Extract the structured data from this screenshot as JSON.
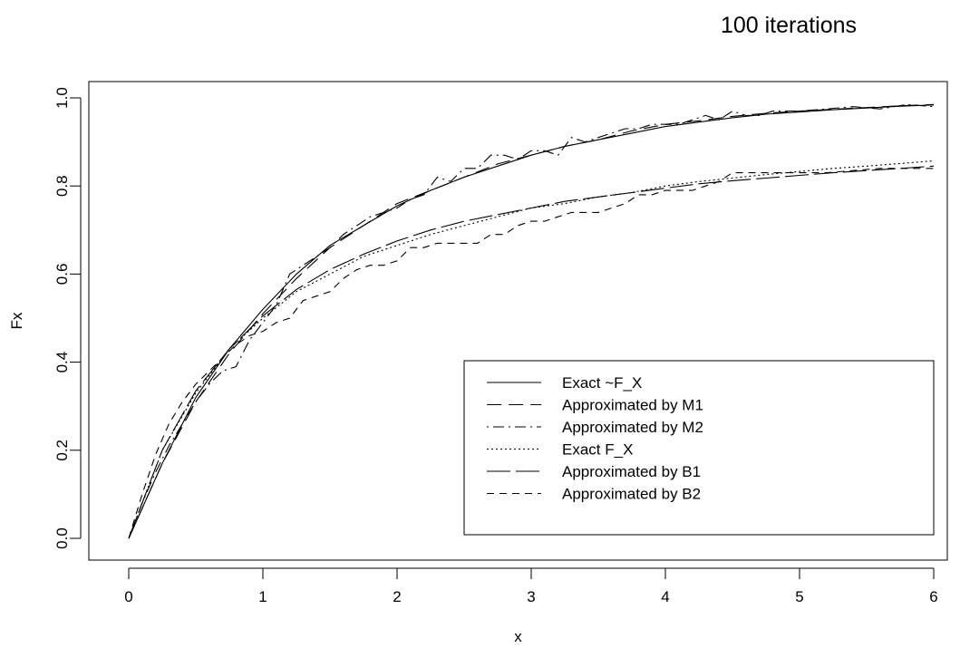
{
  "chart_data": {
    "type": "line",
    "title": "100 iterations",
    "xlabel": "x",
    "ylabel": "Fx",
    "xlim": [
      0,
      6
    ],
    "ylim": [
      0,
      1
    ],
    "xticks": [
      "0",
      "1",
      "2",
      "3",
      "4",
      "5",
      "6"
    ],
    "yticks": [
      "0.0",
      "0.2",
      "0.4",
      "0.6",
      "0.8",
      "1.0"
    ],
    "grid": false,
    "legend_position": "bottom-right",
    "series": [
      {
        "name": "Exact ~F_X",
        "dash": "solid",
        "x": [
          0,
          0.25,
          0.5,
          0.75,
          1,
          1.25,
          1.5,
          1.75,
          2,
          2.25,
          2.5,
          2.75,
          3,
          3.25,
          3.5,
          3.75,
          4,
          4.25,
          4.5,
          4.75,
          5,
          5.25,
          5.5,
          5.75,
          6
        ],
        "y": [
          0.0,
          0.17,
          0.32,
          0.43,
          0.52,
          0.6,
          0.665,
          0.71,
          0.755,
          0.79,
          0.82,
          0.845,
          0.87,
          0.89,
          0.905,
          0.92,
          0.935,
          0.945,
          0.955,
          0.963,
          0.968,
          0.973,
          0.977,
          0.981,
          0.984
        ]
      },
      {
        "name": "Approximated by M1",
        "dash": "longdash",
        "x": [
          0,
          0.25,
          0.5,
          0.75,
          1,
          1.25,
          1.5,
          1.75,
          2,
          2.25,
          2.5,
          2.75,
          3,
          3.25,
          3.5,
          3.75,
          4,
          4.25,
          4.5,
          4.75,
          5,
          5.25,
          5.5,
          5.75,
          6
        ],
        "y": [
          0.0,
          0.17,
          0.31,
          0.42,
          0.51,
          0.59,
          0.66,
          0.71,
          0.76,
          0.79,
          0.82,
          0.85,
          0.87,
          0.89,
          0.905,
          0.925,
          0.94,
          0.948,
          0.958,
          0.965,
          0.97,
          0.974,
          0.978,
          0.982,
          0.985
        ]
      },
      {
        "name": "Approximated by M2",
        "dash": "dotdash",
        "x": [
          0,
          0.1,
          0.2,
          0.3,
          0.4,
          0.5,
          0.6,
          0.7,
          0.8,
          0.9,
          1,
          1.1,
          1.2,
          1.3,
          1.4,
          1.5,
          1.6,
          1.7,
          1.8,
          1.9,
          2,
          2.1,
          2.2,
          2.3,
          2.4,
          2.5,
          2.6,
          2.7,
          2.8,
          2.9,
          3,
          3.1,
          3.2,
          3.3,
          3.4,
          3.5,
          3.6,
          3.7,
          3.8,
          3.9,
          4,
          4.1,
          4.2,
          4.3,
          4.4,
          4.5,
          4.6,
          4.7,
          4.8,
          4.9,
          5,
          5.2,
          5.4,
          5.6,
          5.8,
          6
        ],
        "y": [
          0.0,
          0.08,
          0.15,
          0.21,
          0.26,
          0.31,
          0.35,
          0.38,
          0.39,
          0.45,
          0.49,
          0.53,
          0.6,
          0.62,
          0.64,
          0.66,
          0.69,
          0.71,
          0.73,
          0.74,
          0.75,
          0.77,
          0.78,
          0.82,
          0.81,
          0.84,
          0.84,
          0.87,
          0.87,
          0.86,
          0.88,
          0.88,
          0.87,
          0.91,
          0.9,
          0.91,
          0.92,
          0.93,
          0.93,
          0.94,
          0.94,
          0.94,
          0.95,
          0.96,
          0.95,
          0.97,
          0.96,
          0.96,
          0.97,
          0.97,
          0.97,
          0.975,
          0.98,
          0.975,
          0.985,
          0.98
        ]
      },
      {
        "name": "Exact F_X",
        "dash": "dotted",
        "x": [
          0,
          0.25,
          0.5,
          0.75,
          1,
          1.25,
          1.5,
          1.75,
          2,
          2.25,
          2.5,
          2.75,
          3,
          3.25,
          3.5,
          3.75,
          4,
          4.25,
          4.5,
          4.75,
          5,
          5.25,
          5.5,
          5.75,
          6
        ],
        "y": [
          0.0,
          0.2,
          0.33,
          0.43,
          0.5,
          0.56,
          0.6,
          0.64,
          0.665,
          0.69,
          0.71,
          0.73,
          0.75,
          0.76,
          0.775,
          0.785,
          0.8,
          0.81,
          0.818,
          0.826,
          0.833,
          0.84,
          0.845,
          0.851,
          0.857
        ]
      },
      {
        "name": "Approximated by B1",
        "dash": "longlongdash",
        "x": [
          0,
          0.25,
          0.5,
          0.75,
          1,
          1.25,
          1.5,
          1.75,
          2,
          2.25,
          2.5,
          2.75,
          3,
          3.25,
          3.5,
          3.75,
          4,
          4.25,
          4.5,
          4.75,
          5,
          5.25,
          5.5,
          5.75,
          6
        ],
        "y": [
          0.0,
          0.2,
          0.335,
          0.43,
          0.505,
          0.565,
          0.61,
          0.645,
          0.675,
          0.7,
          0.72,
          0.735,
          0.75,
          0.765,
          0.775,
          0.785,
          0.795,
          0.805,
          0.812,
          0.818,
          0.824,
          0.83,
          0.835,
          0.84,
          0.845
        ]
      },
      {
        "name": "Approximated by B2",
        "dash": "shortdash",
        "x": [
          0,
          0.1,
          0.2,
          0.3,
          0.4,
          0.5,
          0.6,
          0.7,
          0.8,
          0.9,
          1,
          1.1,
          1.2,
          1.3,
          1.4,
          1.5,
          1.6,
          1.7,
          1.8,
          1.9,
          2,
          2.1,
          2.2,
          2.3,
          2.4,
          2.5,
          2.6,
          2.7,
          2.8,
          2.9,
          3,
          3.1,
          3.2,
          3.3,
          3.4,
          3.5,
          3.6,
          3.7,
          3.8,
          3.9,
          4,
          4.1,
          4.2,
          4.3,
          4.4,
          4.5,
          4.6,
          4.7,
          4.8,
          4.9,
          5,
          5.2,
          5.4,
          5.6,
          5.8,
          6
        ],
        "y": [
          0.0,
          0.1,
          0.19,
          0.26,
          0.31,
          0.35,
          0.38,
          0.41,
          0.44,
          0.46,
          0.47,
          0.49,
          0.5,
          0.54,
          0.55,
          0.56,
          0.59,
          0.61,
          0.62,
          0.62,
          0.63,
          0.66,
          0.66,
          0.67,
          0.67,
          0.67,
          0.67,
          0.69,
          0.69,
          0.71,
          0.72,
          0.72,
          0.73,
          0.74,
          0.74,
          0.74,
          0.75,
          0.76,
          0.78,
          0.78,
          0.79,
          0.79,
          0.79,
          0.8,
          0.81,
          0.83,
          0.83,
          0.83,
          0.83,
          0.83,
          0.83,
          0.83,
          0.835,
          0.84,
          0.84,
          0.84
        ]
      }
    ]
  }
}
